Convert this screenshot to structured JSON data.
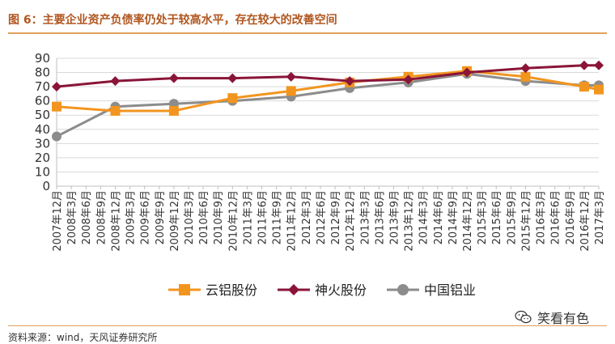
{
  "header": {
    "title": "图 6：主要企业资产负债率仍处于较高水平，存在较大的改善空间"
  },
  "footer": {
    "source": "资料来源：wind，天风证券研究所"
  },
  "watermark": {
    "text": "笑看有色",
    "icon": "wechat-icon"
  },
  "chart_data": {
    "type": "line",
    "ylim": [
      0,
      90
    ],
    "yticks": [
      0,
      10,
      20,
      30,
      40,
      50,
      60,
      70,
      80,
      90
    ],
    "grid": true,
    "legend_position": "bottom",
    "categories": [
      "2007年12月",
      "2008年3月",
      "2008年6月",
      "2008年9月",
      "2008年12月",
      "2009年3月",
      "2009年6月",
      "2009年9月",
      "2009年12月",
      "2010年3月",
      "2010年6月",
      "2010年9月",
      "2010年12月",
      "2011年3月",
      "2011年6月",
      "2011年9月",
      "2011年12月",
      "2012年3月",
      "2012年6月",
      "2012年9月",
      "2012年12月",
      "2013年3月",
      "2013年6月",
      "2013年9月",
      "2013年12月",
      "2014年3月",
      "2014年6月",
      "2014年9月",
      "2014年12月",
      "2015年3月",
      "2015年6月",
      "2015年9月",
      "2015年12月",
      "2016年3月",
      "2016年6月",
      "2016年9月",
      "2016年12月",
      "2017年3月"
    ],
    "series": [
      {
        "name": "云铝股份",
        "color": "#f2951f",
        "marker": "square",
        "points": [
          [
            0,
            56
          ],
          [
            4,
            53
          ],
          [
            8,
            53
          ],
          [
            12,
            62
          ],
          [
            16,
            67
          ],
          [
            20,
            73
          ],
          [
            24,
            77
          ],
          [
            28,
            81
          ],
          [
            32,
            77
          ],
          [
            36,
            70
          ],
          [
            37,
            68
          ]
        ]
      },
      {
        "name": "神火股份",
        "color": "#8a1538",
        "marker": "diamond",
        "points": [
          [
            0,
            70
          ],
          [
            4,
            74
          ],
          [
            8,
            76
          ],
          [
            12,
            76
          ],
          [
            16,
            77
          ],
          [
            20,
            74
          ],
          [
            24,
            75
          ],
          [
            28,
            80
          ],
          [
            32,
            83
          ],
          [
            36,
            85
          ],
          [
            37,
            85
          ]
        ]
      },
      {
        "name": "中国铝业",
        "color": "#8c8c8c",
        "marker": "circle",
        "points": [
          [
            0,
            35
          ],
          [
            4,
            56
          ],
          [
            8,
            58
          ],
          [
            12,
            60
          ],
          [
            16,
            63
          ],
          [
            20,
            69
          ],
          [
            24,
            73
          ],
          [
            28,
            79
          ],
          [
            32,
            74
          ],
          [
            36,
            71
          ],
          [
            37,
            71
          ]
        ]
      }
    ]
  }
}
